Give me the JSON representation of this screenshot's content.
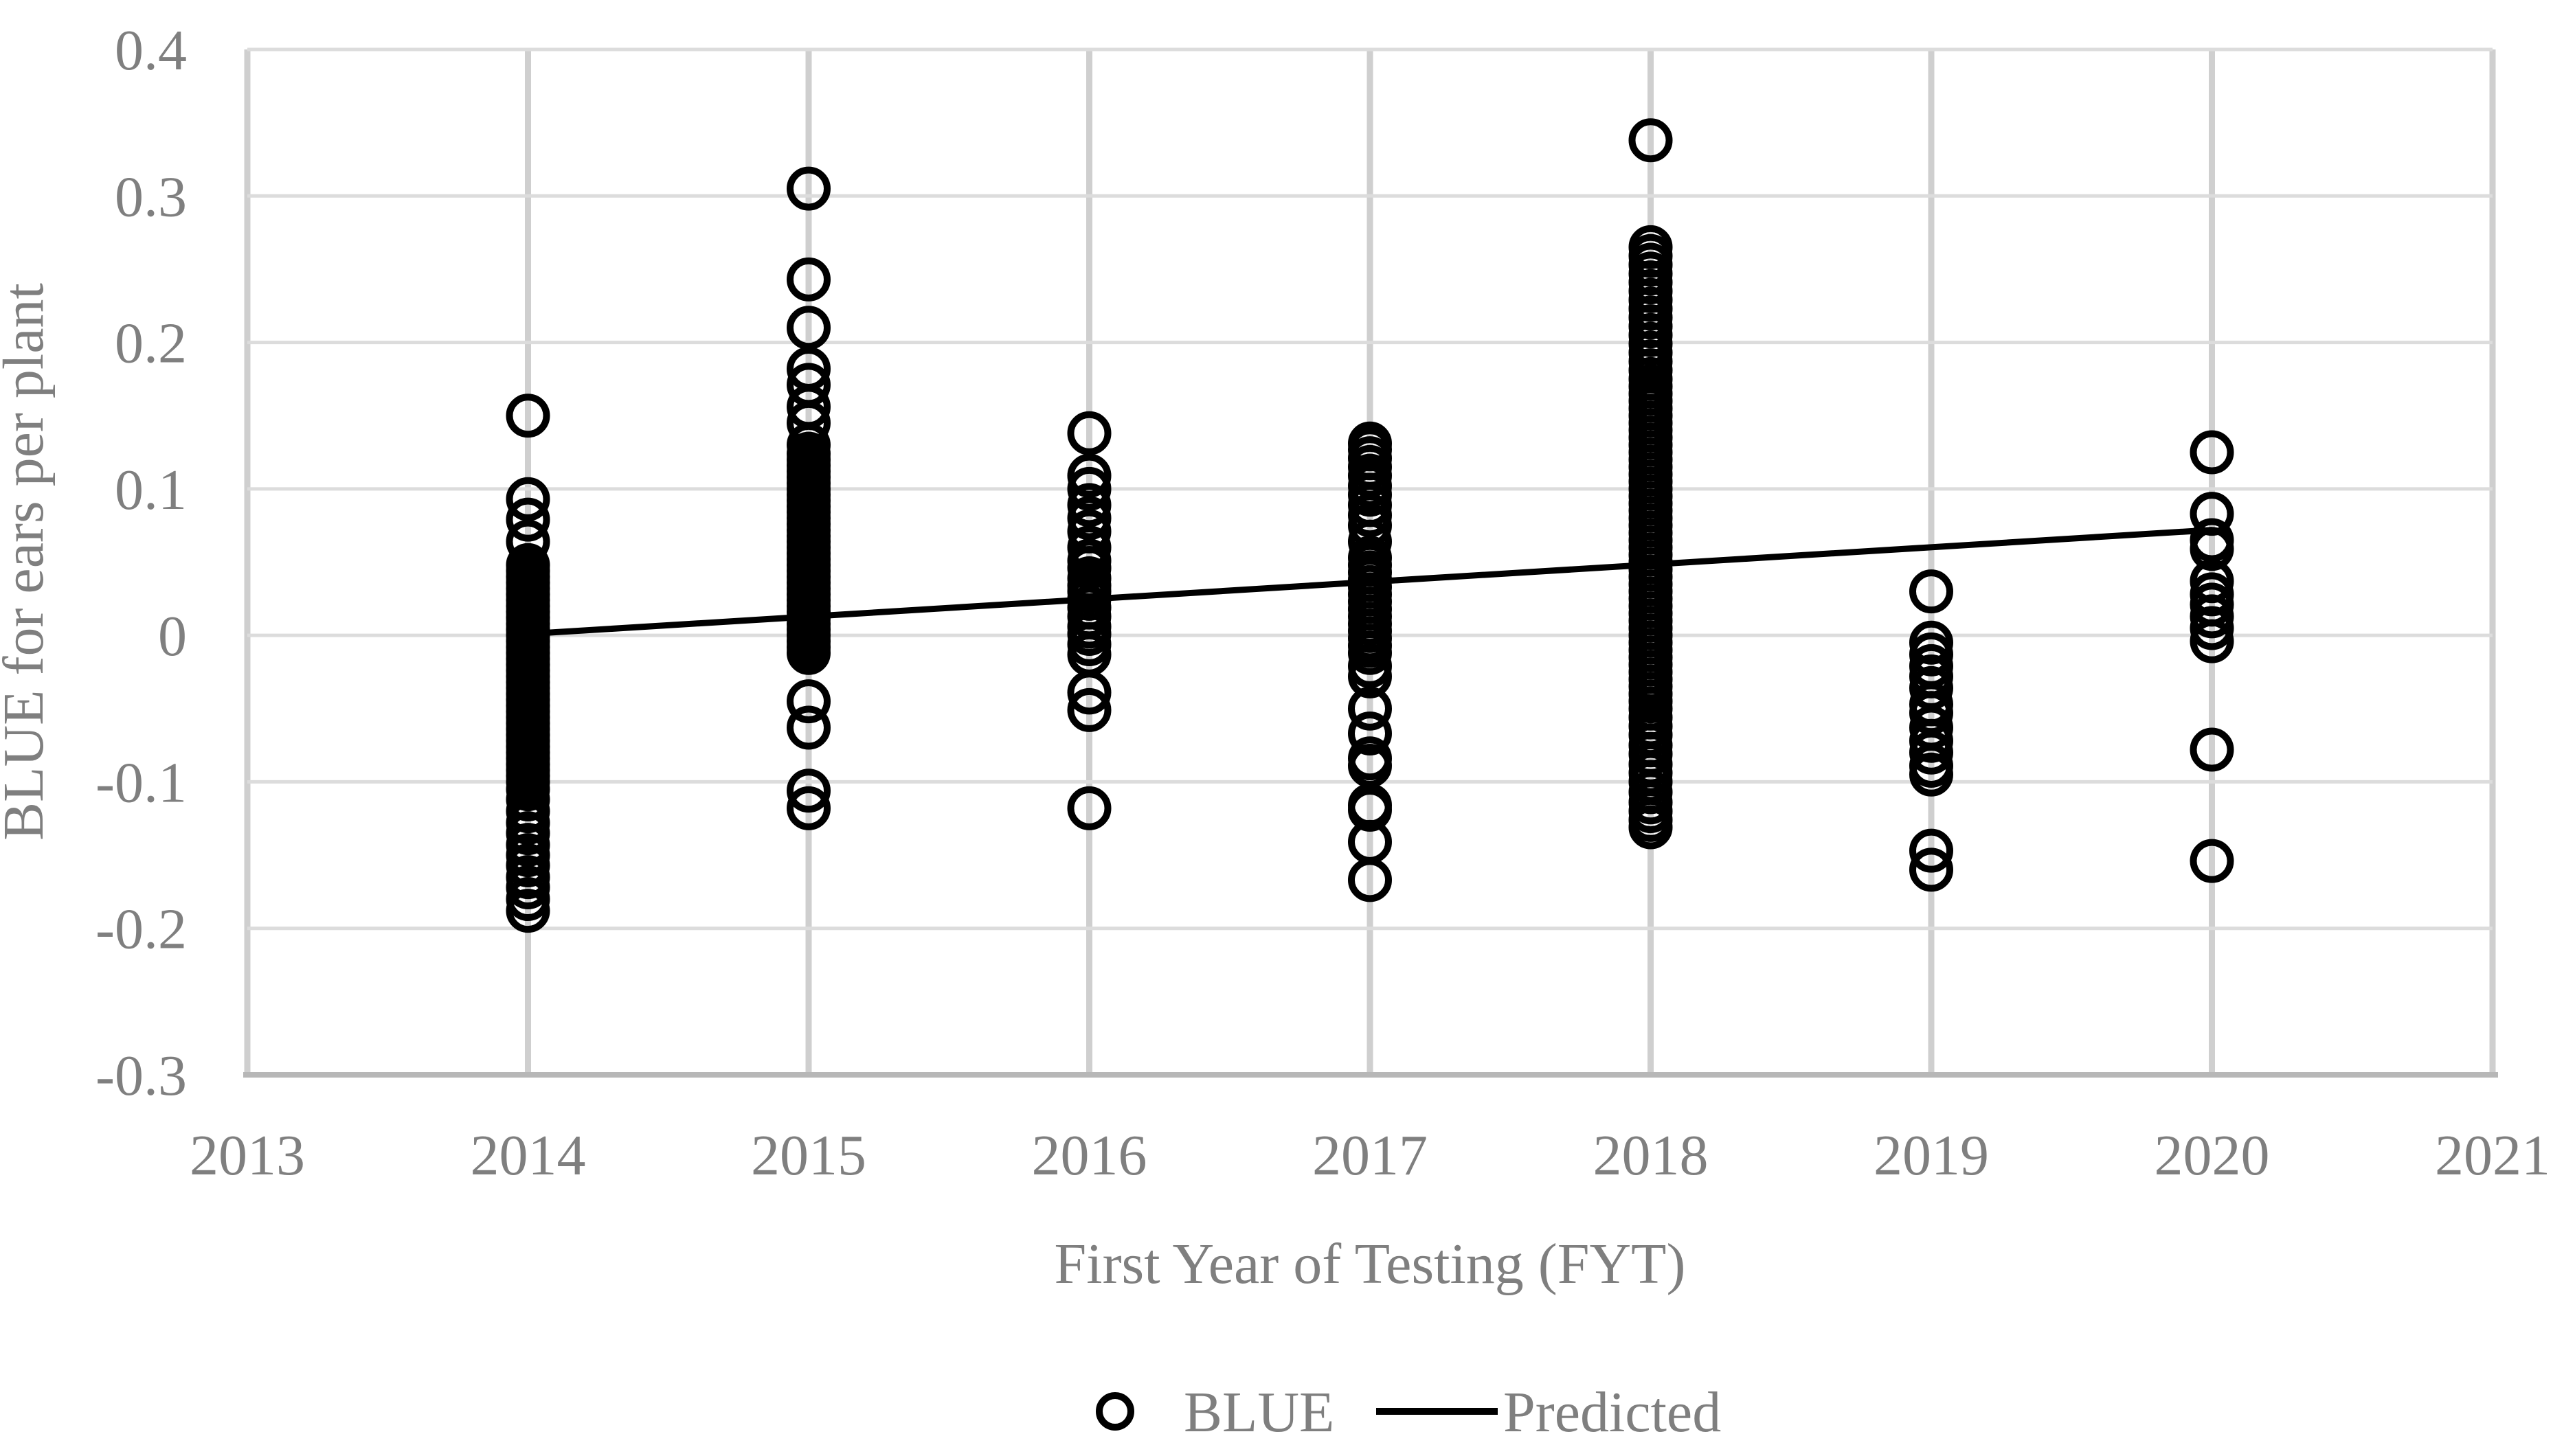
{
  "figure": {
    "y_axis_title": "BLUE for ears per plant",
    "x_axis_title": "First Year of Testing (FYT)",
    "legend": [
      {
        "marker": "open-circle",
        "label": "BLUE"
      },
      {
        "marker": "line",
        "label": "Predicted"
      }
    ],
    "colors": {
      "marker": "#000000",
      "trend_line": "#000000",
      "grid_horizontal": "#dcdcdc",
      "grid_vertical": "#cfcfcf",
      "axis_line": "#b7b7b7",
      "text": "#7f7f7f",
      "background": "#ffffff"
    }
  },
  "chart_data": {
    "type": "scatter",
    "title": "",
    "xlabel": "First Year of Testing (FYT)",
    "ylabel": "BLUE for ears per plant",
    "xlim": [
      2013,
      2021
    ],
    "ylim": [
      -0.3,
      0.4
    ],
    "grid": true,
    "legend_position": "bottom-center",
    "x_ticks": [
      "2013",
      "2014",
      "2015",
      "2016",
      "2017",
      "2018",
      "2019",
      "2020",
      "2021"
    ],
    "y_tick_values": [
      0.4,
      0.3,
      0.2,
      0.1,
      0,
      -0.1,
      -0.2,
      -0.3
    ],
    "y_tick_labels": [
      "0.4",
      "0.3",
      "0.2",
      "0.1",
      "0",
      "-0.1",
      "-0.2",
      "-0.3"
    ],
    "series": [
      {
        "name": "BLUE",
        "kind": "scatter",
        "marker": "open-circle",
        "points_by_year": {
          "2014": [
            0.15,
            0.093,
            0.079,
            0.064,
            0.048,
            0.044,
            0.04,
            0.036,
            0.032,
            0.028,
            0.024,
            0.02,
            0.016,
            0.012,
            0.008,
            0.004,
            0.0,
            -0.004,
            -0.008,
            -0.012,
            -0.016,
            -0.02,
            -0.024,
            -0.028,
            -0.032,
            -0.036,
            -0.04,
            -0.044,
            -0.048,
            -0.052,
            -0.056,
            -0.06,
            -0.064,
            -0.068,
            -0.072,
            -0.076,
            -0.08,
            -0.084,
            -0.088,
            -0.092,
            -0.096,
            -0.1,
            -0.105,
            -0.112,
            -0.12,
            -0.128,
            -0.135,
            -0.143,
            -0.15,
            -0.157,
            -0.165,
            -0.172,
            -0.18,
            -0.188
          ],
          "2015": [
            0.305,
            0.243,
            0.21,
            0.182,
            0.171,
            0.156,
            0.145,
            0.13,
            0.124,
            0.12,
            0.116,
            0.112,
            0.108,
            0.104,
            0.1,
            0.096,
            0.092,
            0.088,
            0.084,
            0.08,
            0.076,
            0.072,
            0.068,
            0.064,
            0.06,
            0.056,
            0.052,
            0.048,
            0.044,
            0.04,
            0.036,
            0.032,
            0.028,
            0.024,
            0.02,
            0.016,
            0.012,
            0.008,
            0.004,
            0.0,
            -0.004,
            -0.008,
            -0.012,
            -0.045,
            -0.063,
            -0.106,
            -0.118
          ],
          "2016": [
            0.138,
            0.109,
            0.1,
            0.089,
            0.08,
            0.071,
            0.06,
            0.051,
            0.046,
            0.039,
            0.034,
            0.03,
            0.025,
            0.019,
            0.013,
            0.006,
            0.001,
            -0.006,
            -0.013,
            -0.039,
            -0.051,
            -0.118
          ],
          "2017": [
            0.131,
            0.127,
            0.121,
            0.115,
            0.109,
            0.102,
            0.096,
            0.089,
            0.082,
            0.075,
            0.064,
            0.053,
            0.048,
            0.043,
            0.038,
            0.033,
            0.028,
            0.023,
            0.018,
            0.013,
            0.008,
            0.003,
            -0.002,
            -0.007,
            -0.012,
            -0.021,
            -0.028,
            -0.05,
            -0.067,
            -0.084,
            -0.089,
            -0.116,
            -0.119,
            -0.141,
            -0.167
          ],
          "2018": [
            0.338,
            0.265,
            0.259,
            0.253,
            0.247,
            0.241,
            0.235,
            0.229,
            0.223,
            0.217,
            0.211,
            0.205,
            0.199,
            0.193,
            0.187,
            0.181,
            0.175,
            0.17,
            0.165,
            0.16,
            0.155,
            0.15,
            0.145,
            0.14,
            0.135,
            0.13,
            0.125,
            0.12,
            0.115,
            0.11,
            0.105,
            0.1,
            0.095,
            0.09,
            0.085,
            0.08,
            0.075,
            0.07,
            0.065,
            0.06,
            0.055,
            0.05,
            0.045,
            0.04,
            0.035,
            0.03,
            0.025,
            0.02,
            0.015,
            0.01,
            0.005,
            0.0,
            -0.005,
            -0.01,
            -0.015,
            -0.02,
            -0.025,
            -0.03,
            -0.035,
            -0.04,
            -0.045,
            -0.05,
            -0.056,
            -0.062,
            -0.068,
            -0.075,
            -0.081,
            -0.088,
            -0.094,
            -0.1,
            -0.107,
            -0.114,
            -0.12,
            -0.126,
            -0.131
          ],
          "2019": [
            0.03,
            -0.005,
            -0.013,
            -0.021,
            -0.028,
            -0.036,
            -0.047,
            -0.053,
            -0.063,
            -0.072,
            -0.08,
            -0.089,
            -0.095,
            -0.147,
            -0.16
          ],
          "2020": [
            0.125,
            0.083,
            0.065,
            0.059,
            0.037,
            0.028,
            0.021,
            0.013,
            0.005,
            -0.004,
            -0.078,
            -0.154
          ]
        }
      },
      {
        "name": "Predicted",
        "kind": "line",
        "points": [
          [
            2014,
            0.001
          ],
          [
            2020,
            0.072
          ]
        ]
      }
    ]
  }
}
